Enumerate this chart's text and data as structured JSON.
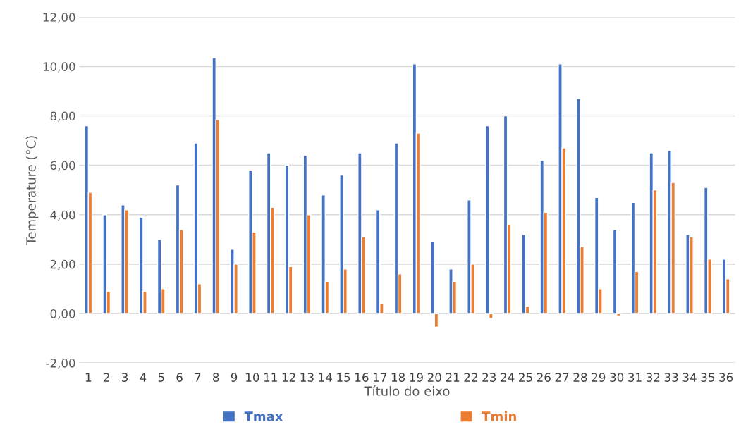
{
  "chart_data": {
    "type": "bar",
    "xlabel": "Título do eixo",
    "ylabel": "Temperature (°C)",
    "categories": [
      "1",
      "2",
      "3",
      "4",
      "5",
      "6",
      "7",
      "8",
      "9",
      "10",
      "11",
      "12",
      "13",
      "14",
      "15",
      "16",
      "17",
      "18",
      "19",
      "20",
      "21",
      "22",
      "23",
      "24",
      "25",
      "26",
      "27",
      "28",
      "29",
      "30",
      "31",
      "32",
      "33",
      "34",
      "35",
      "36"
    ],
    "series": [
      {
        "name": "Tmax",
        "color": "#4472c4",
        "values": [
          7.6,
          4.0,
          4.4,
          3.9,
          3.0,
          5.2,
          6.9,
          10.35,
          2.6,
          5.8,
          6.5,
          6.0,
          6.4,
          4.8,
          5.6,
          6.5,
          4.2,
          6.9,
          10.1,
          2.9,
          1.8,
          4.6,
          7.6,
          8.0,
          3.2,
          6.2,
          10.1,
          8.7,
          4.7,
          3.4,
          4.5,
          6.5,
          6.6,
          3.2,
          5.1,
          2.2
        ]
      },
      {
        "name": "Tmin",
        "color": "#ed7d31",
        "values": [
          4.9,
          0.9,
          4.2,
          0.9,
          1.0,
          3.4,
          1.2,
          7.85,
          2.0,
          3.3,
          4.3,
          1.9,
          4.0,
          1.3,
          1.8,
          3.1,
          0.4,
          1.6,
          7.3,
          -0.55,
          1.3,
          2.0,
          -0.2,
          3.6,
          0.3,
          4.1,
          6.7,
          2.7,
          1.0,
          -0.1,
          1.7,
          5.0,
          5.3,
          3.1,
          2.2,
          1.4
        ]
      }
    ],
    "ylim": [
      -2,
      12
    ],
    "yticks": [
      {
        "value": -2,
        "label": "-2,00"
      },
      {
        "value": 0,
        "label": "0,00"
      },
      {
        "value": 2,
        "label": "2,00"
      },
      {
        "value": 4,
        "label": "4,00"
      },
      {
        "value": 6,
        "label": "6,00"
      },
      {
        "value": 8,
        "label": "8,00"
      },
      {
        "value": 10,
        "label": "10,00"
      },
      {
        "value": 12,
        "label": "12,00"
      }
    ],
    "grid": "y",
    "legend": "bottom"
  }
}
